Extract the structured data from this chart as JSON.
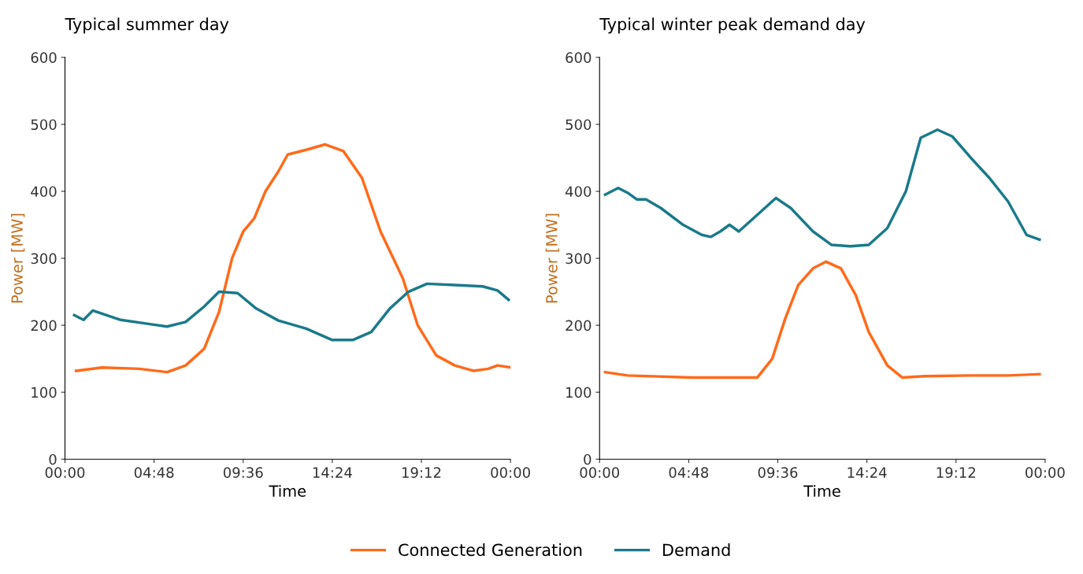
{
  "chart_data": [
    {
      "type": "line",
      "title": "Typical summer day",
      "xlabel": "Time",
      "ylabel": "Power [MW]",
      "xlim": [
        0,
        24
      ],
      "xticks": [
        {
          "value": 0,
          "label": "00:00"
        },
        {
          "value": 4.8,
          "label": "04:48"
        },
        {
          "value": 9.6,
          "label": "09:36"
        },
        {
          "value": 14.4,
          "label": "14:24"
        },
        {
          "value": 19.2,
          "label": "19:12"
        },
        {
          "value": 24,
          "label": "00:00"
        }
      ],
      "ylim": [
        0,
        600
      ],
      "yticks": [
        0,
        100,
        200,
        300,
        400,
        500,
        600
      ],
      "grid": false,
      "legend": "bottom",
      "series": [
        {
          "name": "Connected Generation",
          "color": "#ff6a1a",
          "x": [
            0.6,
            2,
            4,
            5.5,
            6.5,
            7.5,
            8.3,
            9,
            9.6,
            10.2,
            10.8,
            11.5,
            12,
            13,
            14,
            15,
            16,
            17,
            18.2,
            19,
            20,
            21,
            22,
            22.8,
            23.3,
            24
          ],
          "values": [
            132,
            137,
            135,
            130,
            140,
            165,
            220,
            300,
            340,
            360,
            400,
            430,
            455,
            462,
            470,
            460,
            420,
            340,
            270,
            200,
            155,
            140,
            132,
            135,
            140,
            137
          ]
        },
        {
          "name": "Demand",
          "color": "#1a7a8a",
          "x": [
            0.5,
            1,
            1.5,
            3,
            4.5,
            5.5,
            6.5,
            7.5,
            8.3,
            9.3,
            10.3,
            11.5,
            13,
            14.4,
            15.5,
            16.5,
            17.5,
            18.5,
            19.5,
            21,
            22.5,
            23.3,
            23.9
          ],
          "values": [
            215,
            208,
            222,
            208,
            202,
            198,
            205,
            228,
            250,
            248,
            225,
            207,
            195,
            178,
            178,
            190,
            225,
            250,
            262,
            260,
            258,
            252,
            238
          ]
        }
      ]
    },
    {
      "type": "line",
      "title": "Typical winter peak demand day",
      "xlabel": "Time",
      "ylabel": "Power [MW]",
      "xlim": [
        0,
        24
      ],
      "xticks": [
        {
          "value": 0,
          "label": "00:00"
        },
        {
          "value": 4.8,
          "label": "04:48"
        },
        {
          "value": 9.6,
          "label": "09:36"
        },
        {
          "value": 14.4,
          "label": "14:24"
        },
        {
          "value": 19.2,
          "label": "19:12"
        },
        {
          "value": 24,
          "label": "00:00"
        }
      ],
      "ylim": [
        0,
        600
      ],
      "yticks": [
        0,
        100,
        200,
        300,
        400,
        500,
        600
      ],
      "grid": false,
      "series": [
        {
          "color": "#ff6a1a",
          "x": [
            0.3,
            1.5,
            5,
            8.5,
            9.3,
            10,
            10.7,
            11.5,
            12.2,
            13,
            13.8,
            14.5,
            15.5,
            16.3,
            17.5,
            20,
            22,
            23.7
          ],
          "values": [
            130,
            125,
            122,
            122,
            150,
            210,
            260,
            285,
            295,
            285,
            245,
            190,
            140,
            122,
            124,
            125,
            125,
            127
          ]
        },
        {
          "color": "#1a7a8a",
          "x": [
            0.3,
            1,
            1.5,
            2,
            2.5,
            3.3,
            4.5,
            5.5,
            6,
            6.5,
            7,
            7.5,
            8.5,
            9.5,
            10.3,
            11.5,
            12.5,
            13.5,
            14.5,
            15.5,
            16.5,
            17.3,
            18.2,
            19,
            20,
            21,
            22,
            23,
            23.7
          ],
          "values": [
            395,
            405,
            398,
            388,
            388,
            375,
            350,
            335,
            332,
            340,
            350,
            340,
            365,
            390,
            375,
            340,
            320,
            318,
            320,
            345,
            400,
            480,
            492,
            482,
            450,
            420,
            385,
            335,
            328
          ]
        }
      ]
    }
  ]
}
